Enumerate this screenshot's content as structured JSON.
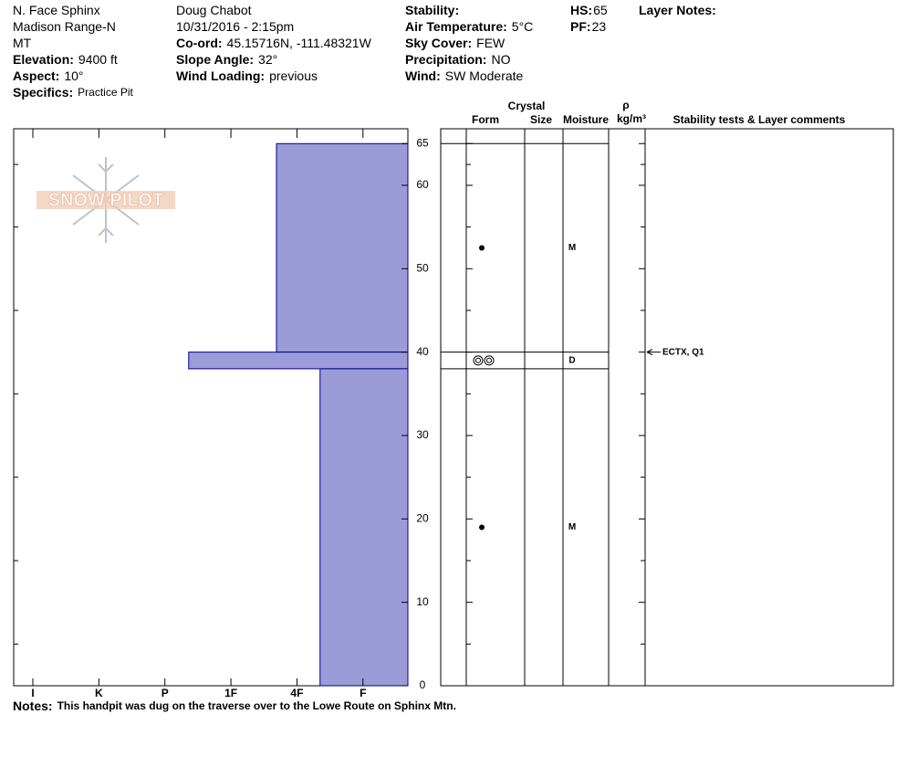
{
  "header": {
    "columns": [
      [
        {
          "text": "N. Face Sphinx"
        },
        {
          "text": "Madison Range-N"
        },
        {
          "text": "MT"
        },
        {
          "label": "Elevation:",
          "value": "9400 ft"
        },
        {
          "label": "Aspect:",
          "value": "10°"
        },
        {
          "label": "Specifics:",
          "value": "Practice Pit"
        }
      ],
      [
        {
          "text": "Doug Chabot"
        },
        {
          "text": "10/31/2016 - 2:15pm"
        },
        {
          "label": "Co-ord:",
          "value": "45.15716N, -111.48321W"
        },
        {
          "label": "Slope Angle:",
          "value": "32°"
        },
        {
          "label": "Wind Loading:",
          "value": "previous"
        }
      ],
      [
        {
          "label": "Stability:"
        },
        {
          "label": "Air Temperature:",
          "value": "5°C"
        },
        {
          "label": "Sky Cover:",
          "value": "FEW"
        },
        {
          "label": "Precipitation:",
          "value": "NO"
        },
        {
          "label": "Wind:",
          "value": "SW Moderate"
        }
      ],
      [
        {
          "label": "HS:",
          "value": 65
        },
        {
          "label": "PF:",
          "value": 23
        }
      ],
      [
        {
          "label": "Layer Notes:"
        }
      ]
    ]
  },
  "logo": "SNOW PILOT",
  "chart_data": {
    "type": "hardness-profile",
    "color": "#9b9bd7",
    "xlim": [
      6.29,
      0.32
    ],
    "xticks": [
      {
        "value": 6,
        "label": "I"
      },
      {
        "value": 5,
        "label": "K"
      },
      {
        "value": 4,
        "label": "P"
      },
      {
        "value": 3,
        "label": "1F"
      },
      {
        "value": 2,
        "label": "4F"
      },
      {
        "value": 1,
        "label": "F"
      }
    ],
    "ylim": [
      0,
      67
    ],
    "yticks": [
      0,
      10,
      20,
      30,
      40,
      50,
      60,
      65
    ],
    "layers": [
      {
        "top": 65,
        "bottom": 40,
        "hardness": 2.31,
        "moisture": "M"
      },
      {
        "top": 40,
        "bottom": 38,
        "hardness": 3.64,
        "moisture": "D"
      },
      {
        "top": 38,
        "bottom": 0,
        "hardness": 1.65,
        "moisture": "M"
      }
    ],
    "tests": [
      {
        "depth": 40,
        "text": "ECTX, Q1"
      }
    ]
  },
  "table": {
    "crystal": "Crystal",
    "form": "Form",
    "size": "Size",
    "moisture": "Moisture",
    "rho": "ρ",
    "density_unit": "kg/m³",
    "comments": "Stability tests & Layer comments"
  },
  "notes": {
    "label": "Notes:",
    "text": "This handpit was dug on the traverse over to the Lowe Route on Sphinx Mtn."
  }
}
